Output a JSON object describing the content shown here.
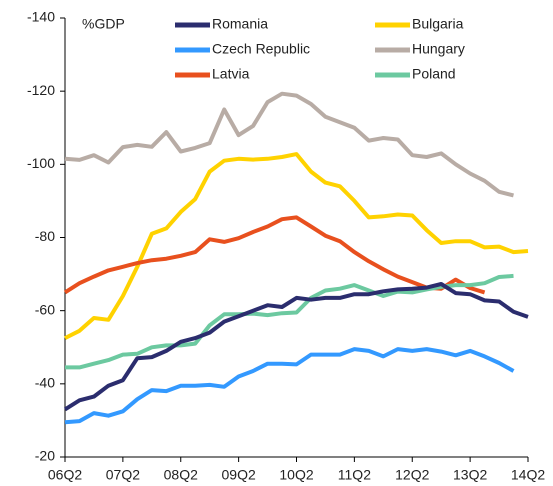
{
  "chart_data": {
    "type": "line",
    "y_label": "%GDP",
    "categories": [
      "06Q2",
      null,
      null,
      null,
      "07Q2",
      null,
      null,
      null,
      "08Q2",
      null,
      null,
      null,
      "09Q2",
      null,
      null,
      null,
      "10Q2",
      null,
      null,
      null,
      "11Q2",
      null,
      null,
      null,
      "12Q2",
      null,
      null,
      null,
      "13Q2",
      null,
      null,
      null,
      "14Q2"
    ],
    "ylim": [
      -20,
      -140
    ],
    "yticks": [
      -140,
      -120,
      -100,
      -80,
      -60,
      -40,
      -20
    ],
    "legend": "top",
    "series": [
      {
        "name": "Romania",
        "color": "#2b2d6e",
        "values": [
          -33,
          -35.5,
          -36.5,
          -39.5,
          -41,
          -47,
          -47.3,
          -49,
          -51.5,
          -52.5,
          -54,
          -57,
          -58.5,
          -60,
          -61.5,
          -61,
          -63.5,
          -63,
          -63.5,
          -63.5,
          -64.5,
          -64.5,
          -65.3,
          -65.8,
          -66,
          -66.3,
          -67.3,
          -64.8,
          -64.5,
          -62.8,
          -62.5,
          -59.7,
          -58.3
        ]
      },
      {
        "name": "Bulgaria",
        "color": "#ffd200",
        "values": [
          -52.5,
          -54.5,
          -58,
          -57.5,
          -64,
          -72,
          -81,
          -82.5,
          -87,
          -90.5,
          -98,
          -101,
          -101.5,
          -101.3,
          -101.5,
          -102,
          -102.8,
          -98,
          -95,
          -94,
          -90,
          -85.5,
          -85.8,
          -86.3,
          -86,
          -82,
          -78.5,
          -79,
          -79,
          -77.3,
          -77.5,
          -76,
          -76.3
        ]
      },
      {
        "name": "Czech Republic",
        "color": "#3399ff",
        "values": [
          -29.5,
          -29.8,
          -32,
          -31.3,
          -32.5,
          -35.8,
          -38.3,
          -38,
          -39.5,
          -39.5,
          -39.7,
          -39.2,
          -42,
          -43.5,
          -45.5,
          -45.5,
          -45.3,
          -48,
          -48,
          -48,
          -49.5,
          -49,
          -47.5,
          -49.5,
          -49,
          -49.5,
          -48.8,
          -47.8,
          -49,
          -47.5,
          -45.7,
          -43.5,
          null
        ]
      },
      {
        "name": "Hungary",
        "color": "#b8aca5",
        "values": [
          -101.5,
          -101.2,
          -102.5,
          -100.5,
          -104.7,
          -105.3,
          -104.8,
          -108.8,
          -103.5,
          -104.5,
          -105.8,
          -115,
          -108,
          -110.5,
          -117,
          -119.3,
          -118.8,
          -116.5,
          -113,
          -111.5,
          -110,
          -106.5,
          -107.2,
          -106.8,
          -102.5,
          -102,
          -103,
          -100,
          -97.5,
          -95.5,
          -92.5,
          -91.5,
          null
        ]
      },
      {
        "name": "Latvia",
        "color": "#e8501e",
        "values": [
          -65,
          -67.5,
          -69.3,
          -71,
          -72,
          -73,
          -73.8,
          -74.2,
          -75,
          -76,
          -79.5,
          -78.8,
          -79.8,
          -81.5,
          -83,
          -85,
          -85.5,
          -83,
          -80.5,
          -79,
          -76,
          -73.5,
          -71.3,
          -69.3,
          -67.8,
          -66.3,
          -66,
          -68.5,
          -66.2,
          -65,
          null,
          null,
          null
        ]
      },
      {
        "name": "Poland",
        "color": "#6cc9a0",
        "values": [
          -44.5,
          -44.5,
          -45.5,
          -46.5,
          -48,
          -48.2,
          -50,
          -50.5,
          -50.5,
          -51,
          -56,
          -59,
          -59,
          -59.2,
          -58.8,
          -59.3,
          -59.5,
          -63.5,
          -65.5,
          -66,
          -67,
          -65.5,
          -64,
          -65.2,
          -65,
          -65.8,
          -66.5,
          -67,
          -67,
          -67.5,
          -69.2,
          -69.5,
          null
        ]
      }
    ]
  }
}
